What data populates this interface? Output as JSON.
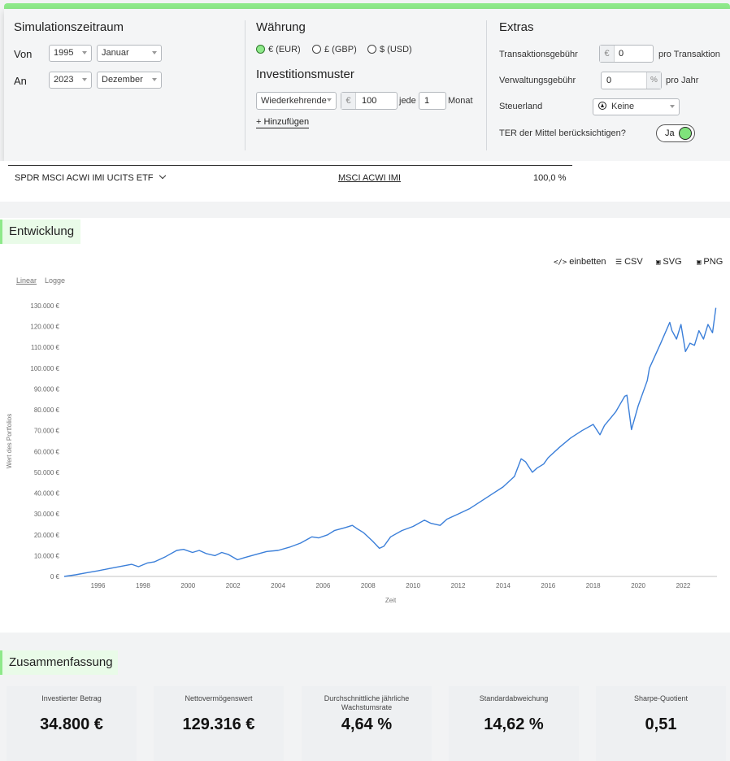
{
  "period": {
    "title": "Simulationszeitraum",
    "from_label": "Von",
    "from_year": "1995",
    "from_month": "Januar",
    "to_label": "An",
    "to_year": "2023",
    "to_month": "Dezember"
  },
  "currency": {
    "title": "Währung",
    "options": [
      {
        "label": "€ (EUR)",
        "selected": true
      },
      {
        "label": "£ (GBP)",
        "selected": false
      },
      {
        "label": "$ (USD)",
        "selected": false
      }
    ]
  },
  "pattern": {
    "title": "Investitionsmuster",
    "type": "Wiederkehrende",
    "currency_symbol": "€",
    "amount": "100",
    "every_label": "jede",
    "every_value": "1",
    "unit": "Monat",
    "add_label": "+ Hinzufügen"
  },
  "extras": {
    "title": "Extras",
    "transaction_fee_label": "Transaktionsgebühr",
    "transaction_fee_prefix": "€",
    "transaction_fee_value": "0",
    "transaction_fee_suffix": "pro Transaktion",
    "management_fee_label": "Verwaltungsgebühr",
    "management_fee_value": "0",
    "management_fee_unit": "%",
    "management_fee_suffix": "pro Jahr",
    "tax_country_label": "Steuerland",
    "tax_country_value": "Keine",
    "ter_label": "TER der Mittel berücksichtigen?",
    "ter_toggle": "Ja"
  },
  "fund": {
    "name": "SPDR MSCI ACWI IMI UCITS ETF",
    "index": "MSCI ACWI IMI",
    "weight": "100,0 %"
  },
  "development": {
    "title": "Entwicklung",
    "embed": "einbetten",
    "csv": "CSV",
    "svg": "SVG",
    "png": "PNG",
    "scale_linear": "Linear",
    "scale_log": "Logge"
  },
  "chart_data": {
    "type": "line",
    "title": "",
    "xlabel": "Zeit",
    "ylabel": "Wert des Portfolios",
    "xlim": [
      1995.0,
      2024.0
    ],
    "ylim": [
      0,
      130000
    ],
    "y_ticks": [
      "0 €",
      "10.000 €",
      "20.000 €",
      "30.000 €",
      "40.000 €",
      "50.000 €",
      "60.000 €",
      "70.000 €",
      "80.000 €",
      "90.000 €",
      "100.000 €",
      "110.000 €",
      "120.000 €",
      "130.000 €"
    ],
    "x_ticks": [
      "1996",
      "1998",
      "2000",
      "2002",
      "2004",
      "2006",
      "2008",
      "2010",
      "2012",
      "2014",
      "2016",
      "2018",
      "2020",
      "2022"
    ],
    "color": "#3b7fd9",
    "series": [
      {
        "x": [
          1995.0,
          1995.5,
          1996.0,
          1996.5,
          1997.0,
          1997.5,
          1998.0,
          1998.3,
          1998.7,
          1999.0,
          1999.5,
          2000.0,
          2000.3,
          2000.7,
          2001.0,
          2001.3,
          2001.7,
          2002.0,
          2002.3,
          2002.7,
          2003.0,
          2003.5,
          2004.0,
          2004.5,
          2005.0,
          2005.5,
          2006.0,
          2006.3,
          2006.7,
          2007.0,
          2007.5,
          2007.8,
          2008.0,
          2008.3,
          2008.7,
          2009.0,
          2009.2,
          2009.5,
          2010.0,
          2010.5,
          2011.0,
          2011.3,
          2011.7,
          2012.0,
          2012.5,
          2013.0,
          2013.5,
          2014.0,
          2014.5,
          2015.0,
          2015.3,
          2015.5,
          2015.8,
          2016.0,
          2016.3,
          2016.5,
          2017.0,
          2017.5,
          2018.0,
          2018.5,
          2018.8,
          2019.0,
          2019.5,
          2019.9,
          2020.0,
          2020.2,
          2020.5,
          2020.9,
          2021.0,
          2021.5,
          2021.9,
          2022.0,
          2022.2,
          2022.4,
          2022.6,
          2022.8,
          2023.0,
          2023.2,
          2023.4,
          2023.6,
          2023.8,
          2023.95
        ],
        "y": [
          0,
          800,
          1800,
          2700,
          3800,
          4800,
          5800,
          4700,
          6500,
          7000,
          9500,
          12500,
          13000,
          11500,
          12500,
          11000,
          10000,
          11500,
          10500,
          8000,
          9000,
          10500,
          12000,
          12500,
          14000,
          16000,
          19000,
          18500,
          20000,
          22000,
          23500,
          24500,
          23000,
          21000,
          17000,
          13500,
          14500,
          19000,
          22000,
          24000,
          27000,
          25500,
          24500,
          27500,
          30000,
          32500,
          36000,
          39500,
          43000,
          48000,
          56500,
          55000,
          50000,
          52000,
          54000,
          57000,
          62000,
          66500,
          70000,
          73000,
          68000,
          72500,
          79000,
          86500,
          87000,
          70500,
          82000,
          94000,
          100000,
          112000,
          122000,
          118000,
          114000,
          121000,
          108000,
          112000,
          111000,
          118000,
          114000,
          121000,
          117000,
          129000
        ]
      }
    ]
  },
  "summary": {
    "title": "Zusammenfassung",
    "cards": [
      {
        "label": "Investierter Betrag",
        "value": "34.800 €"
      },
      {
        "label": "Nettovermögenswert",
        "value": "129.316 €"
      },
      {
        "label": "Durchschnittliche jährliche Wachstumsrate",
        "value": "4,64 %"
      },
      {
        "label": "Standardabweichung",
        "value": "14,62 %"
      },
      {
        "label": "Sharpe-Quotient",
        "value": "0,51"
      }
    ]
  }
}
